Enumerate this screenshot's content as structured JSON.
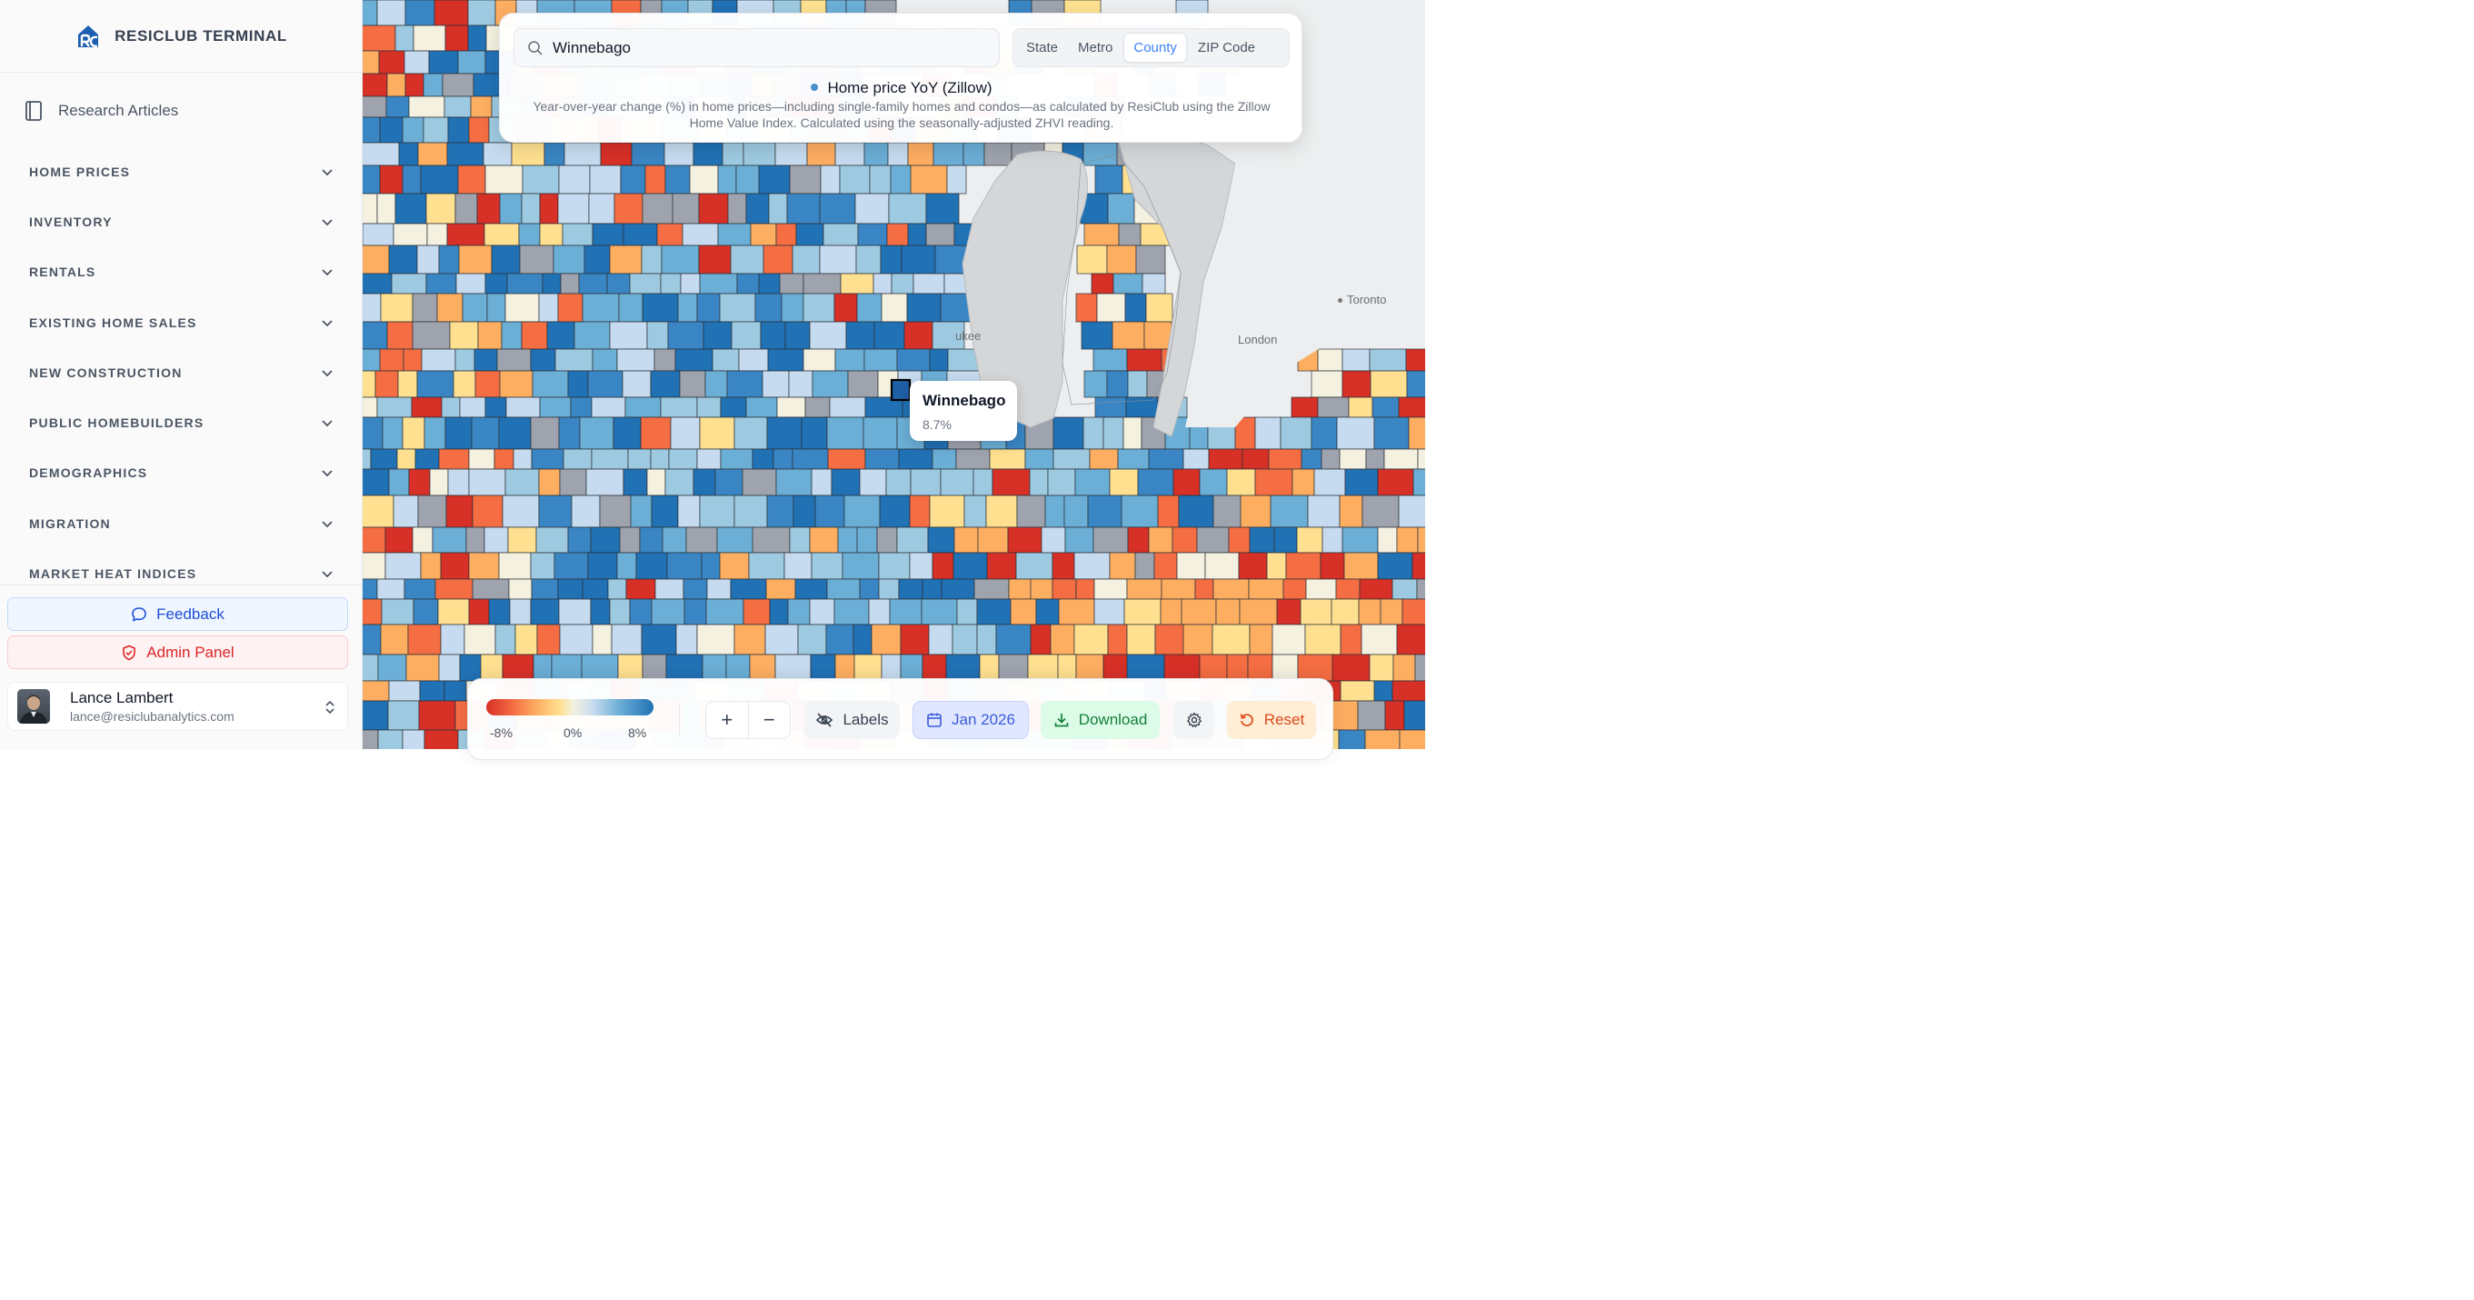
{
  "app": {
    "brand_name": "RESICLUB TERMINAL",
    "brand_color": "#1d5fb0"
  },
  "sidebar": {
    "research_label": "Research Articles",
    "nav_items": [
      {
        "label": "HOME PRICES"
      },
      {
        "label": "INVENTORY"
      },
      {
        "label": "RENTALS"
      },
      {
        "label": "EXISTING HOME SALES"
      },
      {
        "label": "NEW CONSTRUCTION"
      },
      {
        "label": "PUBLIC HOMEBUILDERS"
      },
      {
        "label": "DEMOGRAPHICS"
      },
      {
        "label": "MIGRATION"
      },
      {
        "label": "MARKET HEAT INDICES"
      }
    ],
    "feedback_label": "Feedback",
    "admin_label": "Admin Panel",
    "user": {
      "name": "Lance Lambert",
      "email": "lance@resiclubanalytics.com"
    }
  },
  "search": {
    "value": "Winnebago",
    "placeholder": "Search"
  },
  "geo_levels": {
    "options": [
      "State",
      "Metro",
      "County",
      "ZIP Code"
    ],
    "selected": "County"
  },
  "metric": {
    "title": "Home price YoY (Zillow)",
    "description": "Year-over-year change (%) in home prices—including single-family homes and condos—as calculated by ResiClub using the Zillow Home Value Index. Calculated using the seasonally-adjusted ZHVI reading."
  },
  "tooltip": {
    "name": "Winnebago",
    "value": "8.7%"
  },
  "map_labels": {
    "toronto": "Toronto",
    "london": "London",
    "milwaukee_partial": "ukee"
  },
  "legend": {
    "min_label": "-8%",
    "mid_label": "0%",
    "max_label": "8%",
    "colors": [
      "#d73027",
      "#f46d43",
      "#fdae61",
      "#fee090",
      "#f4f1e0",
      "#c6dbef",
      "#6baed6",
      "#2171b5"
    ]
  },
  "toolbar": {
    "zoom_in": "+",
    "zoom_out": "−",
    "labels_label": "Labels",
    "date_label": "Jan 2026",
    "download_label": "Download",
    "reset_label": "Reset"
  }
}
